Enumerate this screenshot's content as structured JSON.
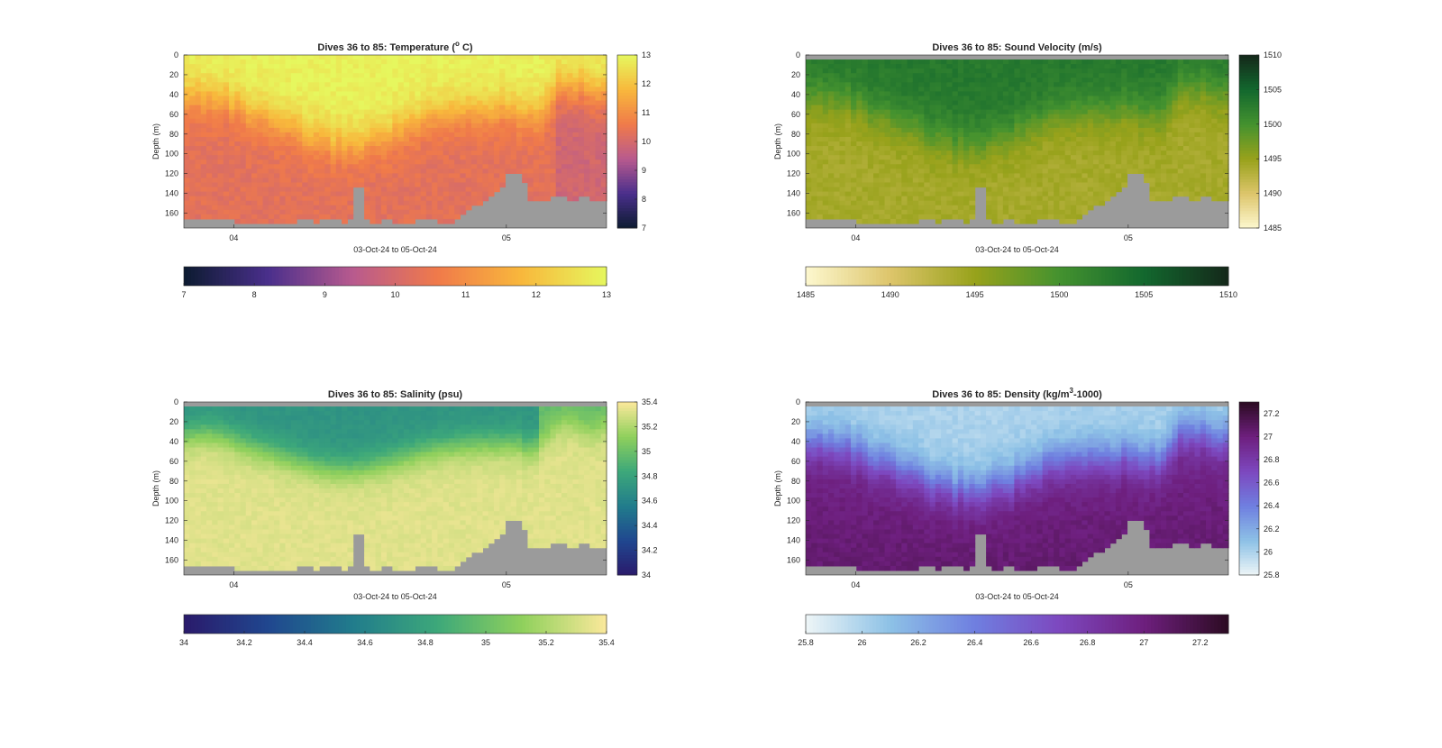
{
  "window": {
    "title": "Dives 36 to 85"
  },
  "chart_data": [
    {
      "type": "heatmap",
      "variable": "temperature",
      "title_main": "Dives 36 to 85: Temperature (",
      "title_sup": "o",
      "title_tail": " C)",
      "ylabel": "Depth (m)",
      "xlabel": "03-Oct-24 to 05-Oct-24",
      "yticks": [
        "0",
        "20",
        "40",
        "60",
        "80",
        "100",
        "120",
        "140",
        "160"
      ],
      "xticks": [
        "04",
        "05"
      ],
      "clim": [
        7,
        13
      ],
      "colorbar_ticks": [
        "7",
        "8",
        "9",
        "10",
        "11",
        "12",
        "13"
      ],
      "colormap": [
        "#0c1b30",
        "#4a2f8c",
        "#b85a8e",
        "#f07a4a",
        "#f8b83c",
        "#e6f75e"
      ],
      "grid": false,
      "legend": "none",
      "colorbars": "right and bottom"
    },
    {
      "type": "heatmap",
      "variable": "sound_velocity",
      "title_main": "Dives 36 to 85: Sound Velocity (m/s)",
      "title_sup": "",
      "title_tail": "",
      "ylabel": "Depth (m)",
      "xlabel": "03-Oct-24 to 05-Oct-24",
      "yticks": [
        "0",
        "20",
        "40",
        "60",
        "80",
        "100",
        "120",
        "140",
        "160"
      ],
      "xticks": [
        "04",
        "05"
      ],
      "clim": [
        1485,
        1510
      ],
      "colorbar_ticks": [
        "1485",
        "1490",
        "1495",
        "1500",
        "1505",
        "1510"
      ],
      "colormap": [
        "#fdf8cf",
        "#ddc56b",
        "#98a21b",
        "#44922f",
        "#13682e",
        "#14281a"
      ],
      "grid": false,
      "legend": "none",
      "colorbars": "right and bottom"
    },
    {
      "type": "heatmap",
      "variable": "salinity",
      "title_main": "Dives 36 to 85: Salinity (psu)",
      "title_sup": "",
      "title_tail": "",
      "ylabel": "Depth (m)",
      "xlabel": "03-Oct-24 to 05-Oct-24",
      "yticks": [
        "0",
        "20",
        "40",
        "60",
        "80",
        "100",
        "120",
        "140",
        "160"
      ],
      "xticks": [
        "04",
        "05"
      ],
      "clim": [
        34,
        35.4
      ],
      "colorbar_ticks": [
        "34",
        "34.2",
        "34.4",
        "34.6",
        "34.8",
        "35",
        "35.2",
        "35.4"
      ],
      "colormap": [
        "#2a1a6b",
        "#20478f",
        "#217c8c",
        "#3da87a",
        "#8fd05c",
        "#fbe89b"
      ],
      "grid": false,
      "legend": "none",
      "colorbars": "right and bottom"
    },
    {
      "type": "heatmap",
      "variable": "density",
      "title_main": "Dives 36 to 85: Density (kg/m",
      "title_sup": "3",
      "title_tail": "-1000)",
      "ylabel": "Depth (m)",
      "xlabel": "03-Oct-24 to 05-Oct-24",
      "yticks": [
        "0",
        "20",
        "40",
        "60",
        "80",
        "100",
        "120",
        "140",
        "160"
      ],
      "xticks": [
        "04",
        "05"
      ],
      "clim": [
        25.8,
        27.3
      ],
      "colorbar_ticks": [
        "25.8",
        "26",
        "26.2",
        "26.4",
        "26.6",
        "26.8",
        "27",
        "27.2"
      ],
      "colormap": [
        "#eef6f7",
        "#8dc1e6",
        "#6f7fe0",
        "#7d48bf",
        "#6e1f7e",
        "#2c0b22"
      ],
      "grid": false,
      "legend": "none",
      "colorbars": "right and bottom"
    }
  ]
}
